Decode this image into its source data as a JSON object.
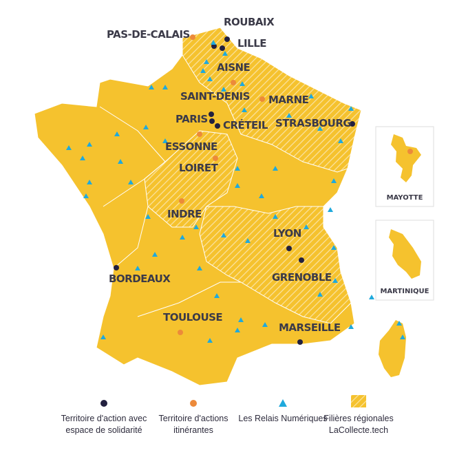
{
  "cities": [
    "PAS-DE-CALAIS",
    "ROUBAIX",
    "LILLE",
    "AISNE",
    "SAINT-DENIS",
    "MARNE",
    "PARIS",
    "CRÉTEIL",
    "STRASBOURG",
    "ESSONNE",
    "LOIRET",
    "INDRE",
    "LYON",
    "BORDEAUX",
    "GRENOBLE",
    "TOULOUSE",
    "MARSEILLE"
  ],
  "insets": [
    "MAYOTTE",
    "MARTINIQUE"
  ],
  "legend": [
    "Territoire d'action avec espace de solidarité",
    "Territoire d'actions itinérantes",
    "Les Relais Numériques",
    "Filières régionales LaCollecte.tech"
  ]
}
